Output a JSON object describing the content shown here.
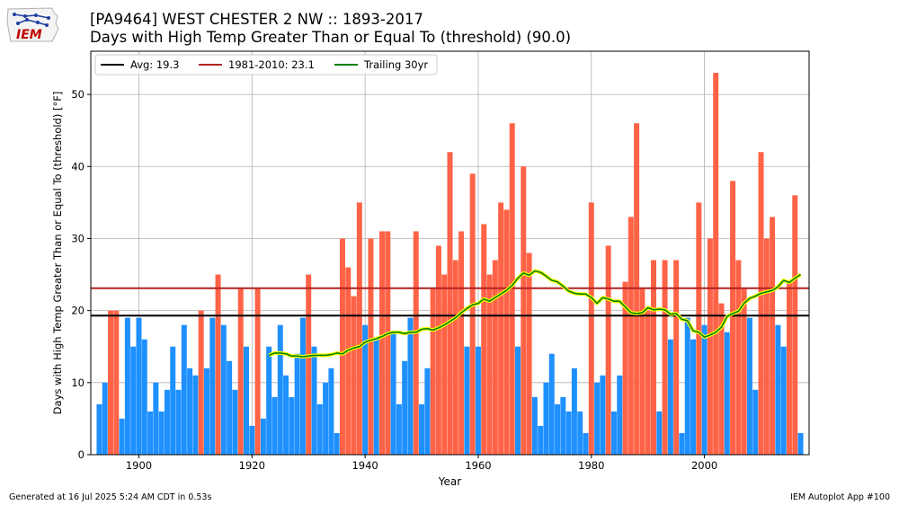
{
  "header": {
    "title": "[PA9464] WEST CHESTER 2 NW :: 1893-2017",
    "subtitle": "Days with High Temp Greater Than or Equal To (threshold) (90.0)"
  },
  "logo": {
    "text": "IEM",
    "icon": "iem-iowa-logo"
  },
  "footer": {
    "generated": "Generated at 16 Jul 2025 5:24 AM CDT in 0.53s",
    "app": "IEM Autoplot App #100"
  },
  "chart_data": {
    "type": "bar",
    "xlabel": "Year",
    "ylabel": "Days with High Temp Greater Than or Equal To (threshold) [°F]",
    "xlim": [
      1891.5,
      2018.5
    ],
    "ylim": [
      0,
      56
    ],
    "xticks": [
      1900,
      1920,
      1940,
      1960,
      1980,
      2000
    ],
    "yticks": [
      0,
      10,
      20,
      30,
      40,
      50
    ],
    "grid": true,
    "legend_position": "top-left",
    "colors": {
      "below": "#1e90ff",
      "above": "#ff6347",
      "avg_line": "#000000",
      "climo_line": "#b22222",
      "trailing_outer": "#ffff00",
      "trailing_inner": "#008000"
    },
    "start_year": 1893,
    "values": [
      7,
      10,
      20,
      20,
      5,
      19,
      15,
      19,
      16,
      6,
      10,
      6,
      9,
      15,
      9,
      18,
      12,
      11,
      20,
      12,
      19,
      25,
      18,
      13,
      9,
      23,
      15,
      4,
      23,
      5,
      15,
      8,
      18,
      11,
      8,
      14,
      19,
      25,
      15,
      7,
      10,
      12,
      3,
      30,
      26,
      22,
      35,
      18,
      30,
      16,
      31,
      31,
      17,
      7,
      13,
      19,
      31,
      7,
      12,
      23,
      29,
      25,
      42,
      27,
      31,
      15,
      39,
      15,
      32,
      25,
      27,
      35,
      34,
      46,
      15,
      40,
      28,
      8,
      4,
      10,
      14,
      7,
      8,
      6,
      12,
      6,
      3,
      35,
      10,
      11,
      29,
      6,
      11,
      24,
      33,
      46,
      23,
      20,
      27,
      6,
      27,
      16,
      27,
      3,
      19,
      16,
      35,
      18,
      30,
      53,
      21,
      17,
      38,
      27,
      23,
      19,
      9,
      42,
      30,
      33,
      18,
      15,
      24,
      36,
      3
    ],
    "average": {
      "label": "Avg: 19.3",
      "value": 19.3
    },
    "climatology": {
      "label": "1981-2010: 23.1",
      "value": 23.1
    },
    "trailing": {
      "label": "Trailing 30yr",
      "x": [
        1923,
        1924,
        1925,
        1926,
        1927,
        1928,
        1929,
        1930,
        1931,
        1932,
        1933,
        1934,
        1935,
        1936,
        1937,
        1938,
        1939,
        1940,
        1941,
        1942,
        1943,
        1944,
        1945,
        1946,
        1947,
        1948,
        1949,
        1950,
        1951,
        1952,
        1953,
        1954,
        1955,
        1956,
        1957,
        1958,
        1959,
        1960,
        1961,
        1962,
        1963,
        1964,
        1965,
        1966,
        1967,
        1968,
        1969,
        1970,
        1971,
        1972,
        1973,
        1974,
        1975,
        1976,
        1977,
        1978,
        1979,
        1980,
        1981,
        1982,
        1983,
        1984,
        1985,
        1986,
        1987,
        1988,
        1989,
        1990,
        1991,
        1992,
        1993,
        1994,
        1995,
        1996,
        1997,
        1998,
        1999,
        2000,
        2001,
        2002,
        2003,
        2004,
        2005,
        2006,
        2007,
        2008,
        2009,
        2010,
        2011,
        2012,
        2013,
        2014,
        2015,
        2016,
        2017
      ],
      "y": [
        13.8,
        14.1,
        14.1,
        14.0,
        13.7,
        13.7,
        13.6,
        13.7,
        13.8,
        13.8,
        13.8,
        13.9,
        14.1,
        14.0,
        14.5,
        14.8,
        15.0,
        15.6,
        15.9,
        16.1,
        16.4,
        16.8,
        17.0,
        17.0,
        16.8,
        17.0,
        17.0,
        17.4,
        17.5,
        17.3,
        17.6,
        18.0,
        18.5,
        19.0,
        19.7,
        20.3,
        20.8,
        21.0,
        21.6,
        21.3,
        21.8,
        22.3,
        22.8,
        23.5,
        24.5,
        25.2,
        24.9,
        25.5,
        25.3,
        24.8,
        24.2,
        24.0,
        23.4,
        22.7,
        22.4,
        22.3,
        22.3,
        21.8,
        21.0,
        21.8,
        21.6,
        21.3,
        21.3,
        20.5,
        19.7,
        19.6,
        19.7,
        20.4,
        20.1,
        20.2,
        20.1,
        19.5,
        19.6,
        18.8,
        18.6,
        17.2,
        17.0,
        16.3,
        16.6,
        17.0,
        17.7,
        19.2,
        19.6,
        19.9,
        21.0,
        21.7,
        22.0,
        22.4,
        22.6,
        22.8,
        23.3,
        24.2,
        23.9,
        24.5,
        25.0
      ]
    }
  }
}
